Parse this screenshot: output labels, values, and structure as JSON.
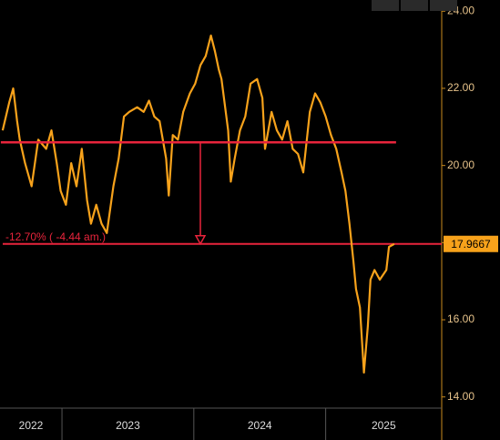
{
  "chart_data": {
    "type": "line",
    "series": [
      {
        "color": "#f7a21b",
        "x": [
          2022.55,
          2022.6,
          2022.63,
          2022.66,
          2022.68,
          2022.72,
          2022.77,
          2022.82,
          2022.88,
          2022.92,
          2022.96,
          2022.99,
          2023.03,
          2023.07,
          2023.11,
          2023.15,
          2023.19,
          2023.22,
          2023.26,
          2023.3,
          2023.34,
          2023.39,
          2023.43,
          2023.47,
          2023.51,
          2023.57,
          2023.62,
          2023.66,
          2023.7,
          2023.74,
          2023.79,
          2023.81,
          2023.84,
          2023.88,
          2023.92,
          2023.97,
          2024.01,
          2024.05,
          2024.09,
          2024.13,
          2024.16,
          2024.19,
          2024.21,
          2024.26,
          2024.28,
          2024.31,
          2024.35,
          2024.39,
          2024.43,
          2024.48,
          2024.52,
          2024.54,
          2024.59,
          2024.63,
          2024.67,
          2024.71,
          2024.75,
          2024.79,
          2024.83,
          2024.88,
          2024.92,
          2024.96,
          2025.0,
          2025.04,
          2025.08,
          2025.12,
          2025.15,
          2025.18,
          2025.21,
          2025.23,
          2025.26,
          2025.29,
          2025.32,
          2025.34,
          2025.37,
          2025.41,
          2025.46,
          2025.48,
          2025.52
        ],
        "values": [
          20.91,
          21.63,
          22.0,
          21.15,
          20.67,
          20.06,
          19.46,
          20.67,
          20.43,
          20.91,
          20.06,
          19.34,
          18.98,
          20.06,
          19.46,
          20.43,
          19.1,
          18.49,
          18.98,
          18.49,
          18.25,
          19.46,
          20.18,
          21.27,
          21.39,
          21.51,
          21.39,
          21.68,
          21.27,
          21.15,
          20.18,
          19.22,
          20.79,
          20.67,
          21.39,
          21.87,
          22.12,
          22.6,
          22.84,
          23.37,
          22.96,
          22.48,
          22.24,
          20.91,
          19.58,
          20.18,
          20.91,
          21.27,
          22.12,
          22.24,
          21.75,
          20.43,
          21.39,
          20.91,
          20.67,
          21.15,
          20.43,
          20.3,
          19.82,
          21.39,
          21.87,
          21.63,
          21.27,
          20.79,
          20.43,
          19.82,
          19.34,
          18.49,
          17.53,
          16.8,
          16.32,
          14.63,
          15.84,
          17.04,
          17.29,
          17.04,
          17.29,
          17.89,
          17.9667
        ]
      }
    ],
    "xlim": [
      2022.53,
      2025.88
    ],
    "xticks": [
      2023,
      2024,
      2025
    ],
    "year_labels": [
      "2022",
      "2023",
      "2024",
      "2025"
    ],
    "ylim": [
      13.71,
      24.29
    ],
    "yticks": [
      {
        "value": 14,
        "label": "14.00"
      },
      {
        "value": 16,
        "label": "16.00"
      },
      {
        "value": 18,
        "label": "18.00"
      },
      {
        "value": 20,
        "label": "20.00"
      },
      {
        "value": 22,
        "label": "22.00"
      },
      {
        "value": 24,
        "label": "24.00"
      }
    ],
    "reference_value": 20.6,
    "reference_color": "#e8243c",
    "last_value": 17.9667,
    "change_label": "-12.70% ( -4.44 am.)"
  }
}
